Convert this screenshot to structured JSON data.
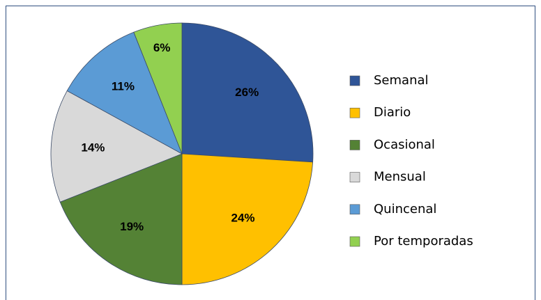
{
  "chart_data": {
    "type": "pie",
    "categories": [
      "Semanal",
      "Diario",
      "Ocasional",
      "Mensual",
      "Quincenal",
      "Por temporadas"
    ],
    "values": [
      26,
      24,
      19,
      14,
      11,
      6
    ],
    "value_labels": [
      "26%",
      "24%",
      "19%",
      "14%",
      "11%",
      "6%"
    ],
    "colors": [
      "#2f5597",
      "#ffc000",
      "#548235",
      "#d9d9d9",
      "#5b9bd5",
      "#92d050"
    ],
    "legend": "right"
  }
}
